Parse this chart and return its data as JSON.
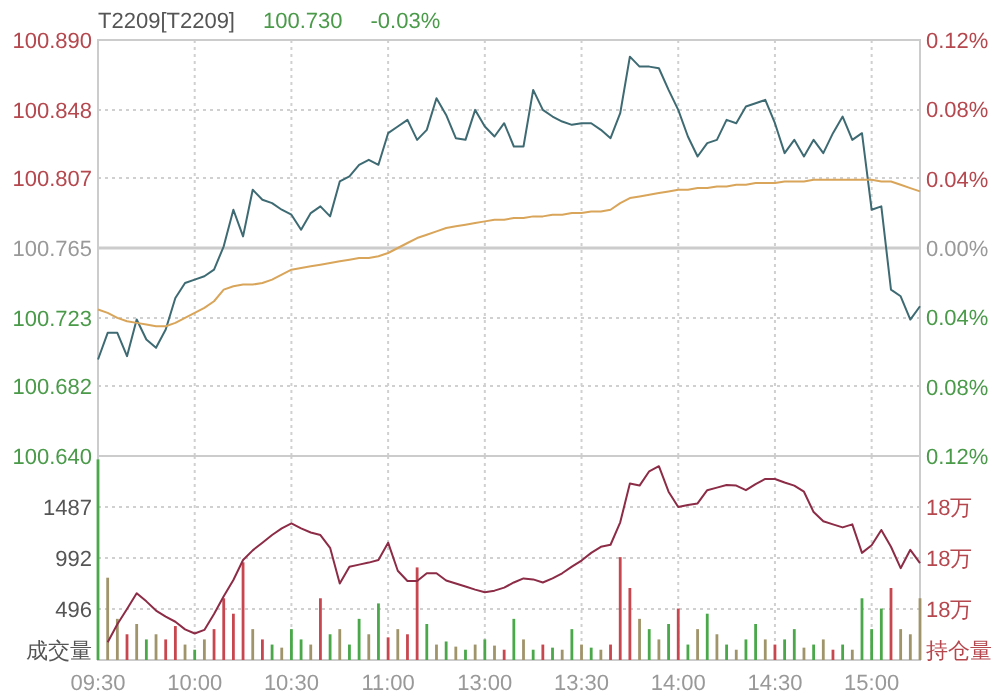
{
  "chart_data": [
    {
      "type": "line",
      "title": "T2209[T2209]",
      "annotations": [
        "100.730",
        "-0.03%"
      ],
      "categories": [
        null,
        null,
        null,
        null,
        null,
        null,
        null,
        null,
        null,
        null,
        null,
        null,
        null,
        null,
        null,
        null,
        null,
        null,
        null,
        null,
        null,
        null,
        null,
        null,
        null,
        null,
        null,
        null,
        null,
        null,
        null,
        null,
        null,
        null,
        null,
        null,
        null,
        null,
        null,
        null,
        null,
        null,
        null,
        null,
        null,
        null,
        null,
        null,
        null,
        null,
        null,
        null,
        null,
        null,
        null,
        null,
        null,
        null,
        null,
        null,
        null,
        null,
        null,
        null,
        null,
        null,
        null,
        null,
        null,
        null,
        null,
        null,
        null,
        null,
        null,
        null,
        null,
        null,
        null,
        null,
        null,
        null,
        null,
        null,
        null,
        null
      ],
      "ylim": [
        100.64,
        100.89
      ],
      "yticks": [
        {
          "value": 100.64,
          "label": "100.640"
        },
        {
          "value": 100.682,
          "label": "100.682"
        },
        {
          "value": 100.723,
          "label": "100.723"
        },
        {
          "value": 100.765,
          "label": "100.765"
        },
        {
          "value": 100.807,
          "label": "100.807"
        },
        {
          "value": 100.848,
          "label": "100.848"
        },
        {
          "value": 100.89,
          "label": "100.890"
        }
      ],
      "y2lim": [
        -0.12,
        0.12
      ],
      "y2ticks": [
        {
          "value": -0.12,
          "label": "0.12%"
        },
        {
          "value": -0.08,
          "label": "0.08%"
        },
        {
          "value": -0.04,
          "label": "0.04%"
        },
        {
          "value": 0,
          "label": "0.00%"
        },
        {
          "value": 0.04,
          "label": "0.04%"
        },
        {
          "value": 0.08,
          "label": "0.08%"
        },
        {
          "value": 0.12,
          "label": "0.12%"
        }
      ],
      "tick_labels": "y",
      "grid": true,
      "ref_lines": [
        {
          "axis": "y",
          "value": 100.765,
          "color": "#cccccc"
        }
      ],
      "series": [
        {
          "color": "#3e6b73",
          "values": [
            100.698,
            100.714,
            100.714,
            100.7,
            100.722,
            100.71,
            100.705,
            100.716,
            100.735,
            100.744,
            100.746,
            100.748,
            100.752,
            100.766,
            100.788,
            100.772,
            100.8,
            100.794,
            100.792,
            100.788,
            100.785,
            100.776,
            100.786,
            100.79,
            100.784,
            100.805,
            100.808,
            100.815,
            100.818,
            100.815,
            100.834,
            100.838,
            100.842,
            100.83,
            100.836,
            100.855,
            100.845,
            100.831,
            100.83,
            100.848,
            100.838,
            100.832,
            100.84,
            100.826,
            100.826,
            100.86,
            100.848,
            100.844,
            100.841,
            100.839,
            100.84,
            100.84,
            100.836,
            100.831,
            100.846,
            100.88,
            100.874,
            100.874,
            100.873,
            100.86,
            100.848,
            100.832,
            100.82,
            100.828,
            100.83,
            100.842,
            100.84,
            100.85,
            100.852,
            100.854,
            100.84,
            100.822,
            100.83,
            100.82,
            100.83,
            100.822,
            100.834,
            100.844,
            100.83,
            100.834,
            100.788,
            100.79,
            100.74,
            100.736,
            100.722,
            100.73
          ]
        },
        {
          "color": "#d9a55a",
          "values": [
            100.728,
            100.726,
            100.723,
            100.721,
            100.72,
            100.719,
            100.718,
            100.718,
            100.72,
            100.723,
            100.726,
            100.729,
            100.733,
            100.74,
            100.742,
            100.743,
            100.743,
            100.744,
            100.746,
            100.749,
            100.752,
            100.753,
            100.754,
            100.755,
            100.756,
            100.757,
            100.758,
            100.759,
            100.759,
            100.76,
            100.762,
            100.765,
            100.768,
            100.771,
            100.773,
            100.775,
            100.777,
            100.778,
            100.779,
            100.78,
            100.781,
            100.782,
            100.782,
            100.783,
            100.783,
            100.784,
            100.784,
            100.785,
            100.785,
            100.786,
            100.786,
            100.787,
            100.787,
            100.788,
            100.792,
            100.795,
            100.796,
            100.797,
            100.798,
            100.799,
            100.8,
            100.8,
            100.801,
            100.801,
            100.802,
            100.802,
            100.803,
            100.803,
            100.804,
            100.804,
            100.804,
            100.805,
            100.805,
            100.805,
            100.806,
            100.806,
            100.806,
            100.806,
            100.806,
            100.806,
            100.806,
            100.805,
            100.805,
            100.803,
            100.801,
            100.799
          ]
        }
      ]
    },
    {
      "type": "bar",
      "ylabel": "成交量",
      "y2label": "持仓量",
      "categories": [
        "09:30",
        null,
        null,
        null,
        null,
        null,
        null,
        null,
        null,
        null,
        "10:00",
        null,
        null,
        null,
        null,
        null,
        null,
        null,
        null,
        null,
        "10:30",
        null,
        null,
        null,
        null,
        null,
        null,
        null,
        null,
        null,
        "11:00",
        null,
        null,
        null,
        null,
        null,
        null,
        null,
        null,
        null,
        "13:00",
        null,
        null,
        null,
        null,
        null,
        null,
        null,
        null,
        null,
        "13:30",
        null,
        null,
        null,
        null,
        null,
        null,
        null,
        null,
        null,
        "14:00",
        null,
        null,
        null,
        null,
        null,
        null,
        null,
        null,
        null,
        "14:30",
        null,
        null,
        null,
        null,
        null,
        null,
        null,
        null,
        null,
        "15:00",
        null,
        null,
        null,
        null,
        null
      ],
      "ylim": [
        0,
        1983
      ],
      "yticks": [
        496,
        992,
        1487
      ],
      "y2lim": [
        17.98,
        18.02
      ],
      "y2ticks": [
        {
          "value": 17.99,
          "label": "18万"
        },
        {
          "value": 18.0,
          "label": "18万"
        },
        {
          "value": 18.01,
          "label": "18万"
        }
      ],
      "grid": true,
      "series": [
        {
          "type": "bar",
          "values": [
            1950,
            800,
            400,
            250,
            350,
            200,
            250,
            200,
            330,
            150,
            100,
            200,
            300,
            600,
            450,
            950,
            300,
            200,
            150,
            120,
            300,
            200,
            150,
            600,
            250,
            300,
            150,
            400,
            250,
            550,
            220,
            300,
            250,
            900,
            350,
            150,
            180,
            130,
            100,
            150,
            200,
            140,
            100,
            400,
            200,
            100,
            150,
            120,
            100,
            300,
            150,
            120,
            100,
            150,
            1000,
            700,
            400,
            300,
            200,
            350,
            500,
            150,
            300,
            450,
            250,
            150,
            100,
            200,
            350,
            200,
            150,
            200,
            300,
            120,
            150,
            200,
            100,
            150,
            100,
            600,
            300,
            500,
            700,
            300,
            250,
            600
          ],
          "colors": [
            "#4aa84a",
            "#a0946a",
            "#a0946a",
            "#c8474f",
            "#a0946a",
            "#4aa84a",
            "#a0946a",
            "#c8474f",
            "#c8474f",
            "#a0946a",
            "#4aa84a",
            "#a0946a",
            "#c8474f",
            "#c8474f",
            "#c8474f",
            "#c8474f",
            "#a0946a",
            "#c8474f",
            "#4aa84a",
            "#a0946a",
            "#4aa84a",
            "#4aa84a",
            "#a0946a",
            "#c8474f",
            "#4aa84a",
            "#a0946a",
            "#4aa84a",
            "#4aa84a",
            "#a0946a",
            "#4aa84a",
            "#c8474f",
            "#a0946a",
            "#c8474f",
            "#c8474f",
            "#4aa84a",
            "#a0946a",
            "#4aa84a",
            "#a0946a",
            "#4aa84a",
            "#a0946a",
            "#4aa84a",
            "#a0946a",
            "#c8474f",
            "#4aa84a",
            "#a0946a",
            "#4aa84a",
            "#c8474f",
            "#4aa84a",
            "#a0946a",
            "#4aa84a",
            "#a0946a",
            "#4aa84a",
            "#a0946a",
            "#c8474f",
            "#c8474f",
            "#c8474f",
            "#a0946a",
            "#4aa84a",
            "#a0946a",
            "#4aa84a",
            "#c8474f",
            "#4aa84a",
            "#a0946a",
            "#4aa84a",
            "#a0946a",
            "#4aa84a",
            "#a0946a",
            "#4aa84a",
            "#4aa84a",
            "#a0946a",
            "#c8474f",
            "#4aa84a",
            "#4aa84a",
            "#a0946a",
            "#4aa84a",
            "#a0946a",
            "#c8474f",
            "#4aa84a",
            "#a0946a",
            "#4aa84a",
            "#4aa84a",
            "#4aa84a",
            "#c8474f",
            "#a0946a",
            "#a0946a",
            "#a0946a"
          ]
        },
        {
          "type": "line",
          "axis": "y2",
          "color": "#8c2c46",
          "values": [
            null,
            17.9835,
            17.987,
            17.99,
            17.9931,
            17.9915,
            17.9897,
            17.9885,
            17.9875,
            17.986,
            17.9852,
            17.9859,
            17.989,
            17.9925,
            17.9957,
            17.9996,
            18.0015,
            18.003,
            18.0045,
            18.0058,
            18.0068,
            18.0058,
            18.005,
            18.0045,
            18.002,
            17.995,
            17.9983,
            17.9987,
            17.9991,
            17.9996,
            18.003,
            17.9975,
            17.9955,
            17.9955,
            17.997,
            17.997,
            17.9956,
            17.995,
            17.9944,
            17.9938,
            17.9933,
            17.9936,
            17.9942,
            17.9952,
            17.996,
            17.9958,
            17.9952,
            17.996,
            17.997,
            17.9983,
            17.9995,
            18.001,
            18.0022,
            18.0026,
            18.007,
            18.0146,
            18.0142,
            18.017,
            18.018,
            18.013,
            18.01,
            18.0104,
            18.0107,
            18.0133,
            18.0138,
            18.0143,
            18.0142,
            18.0133,
            18.0145,
            18.0155,
            18.0155,
            18.0148,
            18.0142,
            18.013,
            18.009,
            18.0072,
            18.0066,
            18.006,
            18.0066,
            18.001,
            18.0025,
            18.0055,
            18.0022,
            17.998,
            18.0016,
            17.999
          ]
        }
      ]
    }
  ]
}
